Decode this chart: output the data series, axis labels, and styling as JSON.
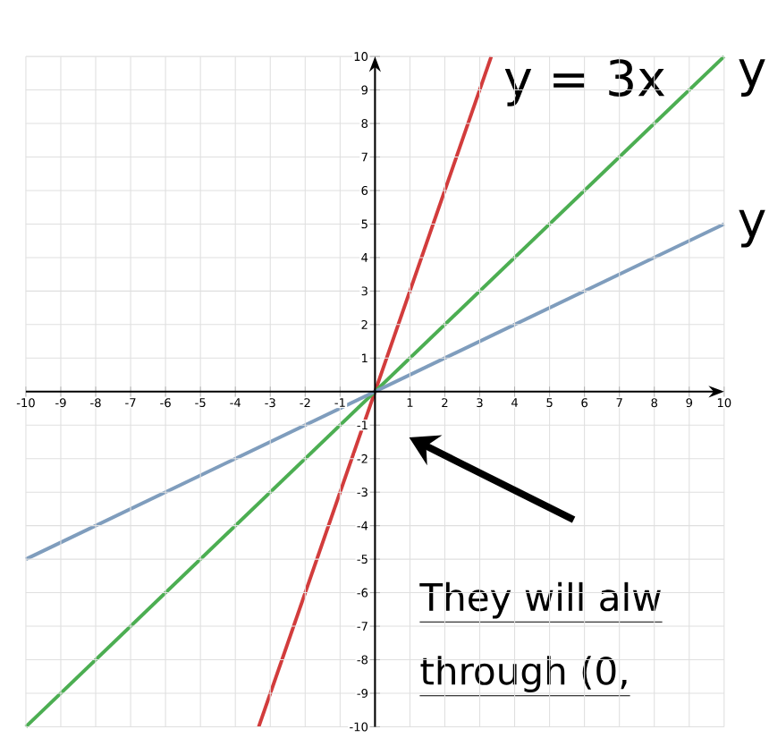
{
  "chart_data": {
    "type": "line",
    "xlim": [
      -10,
      10
    ],
    "ylim": [
      -10,
      10
    ],
    "xticks": [
      -10,
      -9,
      -8,
      -7,
      -6,
      -5,
      -4,
      -3,
      -2,
      -1,
      1,
      2,
      3,
      4,
      5,
      6,
      7,
      8,
      9,
      10
    ],
    "yticks": [
      -10,
      -9,
      -8,
      -7,
      -6,
      -5,
      -4,
      -3,
      -2,
      -1,
      1,
      2,
      3,
      4,
      5,
      6,
      7,
      8,
      9,
      10
    ],
    "grid": true,
    "marker": "none",
    "line_style": "solid",
    "series": [
      {
        "color": "#d23c3c",
        "x": [
          -3.33,
          3.33
        ],
        "values": [
          -10,
          10
        ]
      },
      {
        "color": "#4cae52",
        "x": [
          -10,
          10
        ],
        "values": [
          -10,
          10
        ]
      },
      {
        "color": "#7f9dbd",
        "x": [
          -10,
          10
        ],
        "values": [
          -5,
          5
        ]
      }
    ],
    "annotations": [
      "y = 3x",
      "y",
      "y",
      "They will alw",
      "through (0,"
    ]
  }
}
